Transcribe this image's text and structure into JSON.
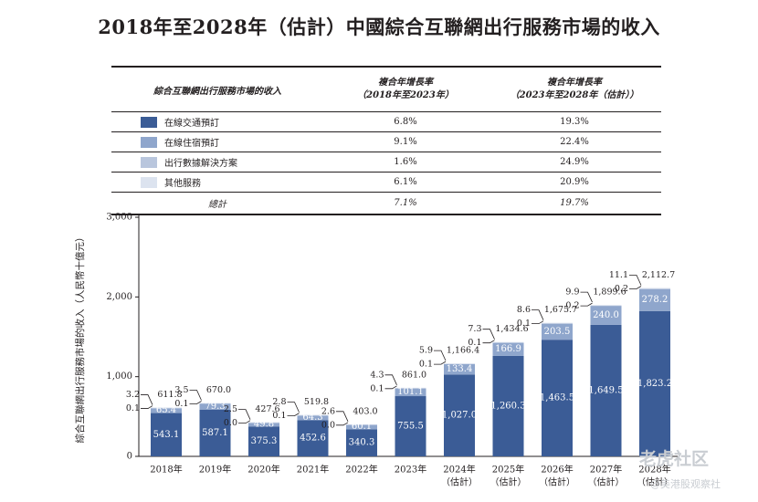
{
  "title": "2018年至2028年（估計）中國綜合互聯網出行服務市場的收入",
  "table": {
    "headers": {
      "category": "綜合互聯網出行服務市場的收入",
      "cagr1": [
        "複合年增長率",
        "（2018年至2023年）"
      ],
      "cagr2": [
        "複合年增長率",
        "（2023年至2028年（估計））"
      ]
    },
    "rows": [
      {
        "label": "在線交通預訂",
        "color": "#3b5c96",
        "cagr1": "6.8%",
        "cagr2": "19.3%"
      },
      {
        "label": "在線住宿預訂",
        "color": "#8fa6cc",
        "cagr1": "9.1%",
        "cagr2": "22.4%"
      },
      {
        "label": "出行數據解決方案",
        "color": "#b9c6dd",
        "cagr1": "1.6%",
        "cagr2": "24.9%"
      },
      {
        "label": "其他服務",
        "color": "#dce3ef",
        "cagr1": "6.1%",
        "cagr2": "20.9%"
      }
    ],
    "total": {
      "label": "總計",
      "cagr1": "7.1%",
      "cagr2": "19.7%"
    }
  },
  "chart_data": {
    "type": "bar",
    "stacked": true,
    "ylabel": "綜合互聯網出行服務市場的收入（人民幣十億元）",
    "ylim": [
      0,
      3000
    ],
    "yticks": [
      "0",
      "1,000",
      "2,000",
      "3,000"
    ],
    "categories": [
      "2018年",
      "2019年",
      "2020年",
      "2021年",
      "2022年",
      "2023年",
      "2024年",
      "2025年",
      "2026年",
      "2027年",
      "2028年"
    ],
    "category_notes": [
      "",
      "",
      "",
      "",
      "",
      "",
      "（估計）",
      "（估計）",
      "（估計）",
      "（估計）",
      "（估計）"
    ],
    "series": [
      {
        "name": "在線交通預訂",
        "color": "#3b5c96",
        "values": [
          543.1,
          587.1,
          375.3,
          452.6,
          340.3,
          755.5,
          1027.0,
          1260.3,
          1463.5,
          1649.5,
          1823.2
        ]
      },
      {
        "name": "在線住宿預訂",
        "color": "#8fa6cc",
        "values": [
          65.4,
          79.3,
          49.8,
          64.3,
          60.1,
          101.1,
          133.4,
          166.9,
          203.5,
          240.0,
          278.2
        ]
      },
      {
        "name": "出行數據解決方案",
        "color": "#b9c6dd",
        "values": [
          0.1,
          0.1,
          0.0,
          0.1,
          0.0,
          0.1,
          0.1,
          0.1,
          0.1,
          0.2,
          0.2
        ]
      },
      {
        "name": "其他服務",
        "color": "#dce3ef",
        "values": [
          3.2,
          3.5,
          2.5,
          2.8,
          2.6,
          4.3,
          5.9,
          7.3,
          8.6,
          9.9,
          11.1
        ]
      }
    ],
    "value_labels": {
      "series1": [
        "543.1",
        "587.1",
        "375.3",
        "452.6",
        "340.3",
        "755.5",
        "1,027.0",
        "1,260.3",
        "1,463.5",
        "1,649.5",
        "1,823.2"
      ],
      "series2": [
        "65.4",
        "79.3",
        "49.8",
        "64.3",
        "60.1",
        "101.1",
        "133.4",
        "166.9",
        "203.5",
        "240.0",
        "278.2"
      ],
      "series3": [
        "0.1",
        "0.1",
        "0.0",
        "0.1",
        "0.0",
        "0.1",
        "0.1",
        "0.1",
        "0.1",
        "0.2",
        "0.2"
      ],
      "series4": [
        "3.2",
        "3.5",
        "2.5",
        "2.8",
        "2.6",
        "4.3",
        "5.9",
        "7.3",
        "8.6",
        "9.9",
        "11.1"
      ],
      "totals": [
        "611.8",
        "670.0",
        "427.6",
        "519.8",
        "403.0",
        "861.0",
        "1,166.4",
        "1,434.6",
        "1,675.7",
        "1,899.6",
        "2,112.7"
      ]
    }
  },
  "watermark": {
    "logo": "老虎社区",
    "caption": "@美港股观察社"
  }
}
